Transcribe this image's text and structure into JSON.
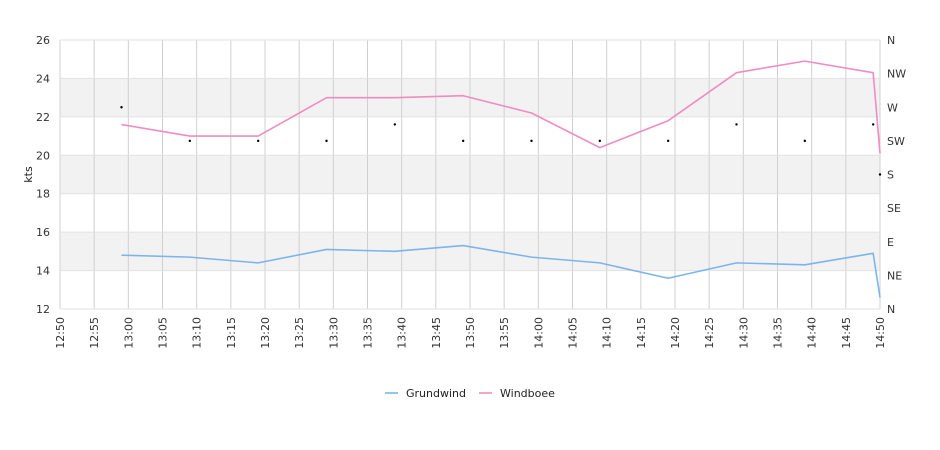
{
  "chart_data": {
    "type": "line",
    "ylabel": "kts",
    "ylim": [
      12,
      26
    ],
    "y_ticks": [
      12,
      14,
      16,
      18,
      20,
      22,
      24,
      26
    ],
    "y_bands": [
      [
        14,
        16
      ],
      [
        18,
        20
      ],
      [
        22,
        24
      ]
    ],
    "x_ticks": [
      "12:50",
      "12:55",
      "13:00",
      "13:05",
      "13:10",
      "13:15",
      "13:20",
      "13:25",
      "13:30",
      "13:35",
      "13:40",
      "13:45",
      "13:50",
      "13:55",
      "14:00",
      "14:05",
      "14:10",
      "14:15",
      "14:20",
      "14:25",
      "14:30",
      "14:35",
      "14:40",
      "14:45",
      "14:50"
    ],
    "xlim": [
      "12:50",
      "14:50"
    ],
    "right_axis": {
      "labels": [
        "N",
        "NW",
        "W",
        "SW",
        "S",
        "SE",
        "E",
        "NE",
        "N"
      ],
      "values": [
        360,
        315,
        270,
        225,
        180,
        135,
        90,
        45,
        0
      ]
    },
    "x": [
      "12:59",
      "13:09",
      "13:19",
      "13:29",
      "13:39",
      "13:49",
      "13:59",
      "14:09",
      "14:19",
      "14:29",
      "14:39",
      "14:49",
      "14:50"
    ],
    "series": [
      {
        "name": "Grundwind",
        "color": "#7cb5ec",
        "values": [
          14.8,
          14.7,
          14.4,
          15.1,
          15.0,
          15.3,
          14.7,
          14.4,
          13.6,
          14.4,
          14.3,
          14.9,
          12.6
        ]
      },
      {
        "name": "Windboee",
        "color": "#f08cc0",
        "values": [
          21.6,
          21.0,
          21.0,
          23.0,
          23.0,
          23.1,
          22.2,
          20.4,
          21.8,
          24.3,
          24.9,
          24.3,
          20.1
        ]
      }
    ],
    "direction": {
      "x": [
        "12:59",
        "13:09",
        "13:19",
        "13:29",
        "13:39",
        "13:49",
        "13:59",
        "14:09",
        "14:19",
        "14:29",
        "14:39",
        "14:49",
        "14:50"
      ],
      "values": [
        270,
        225,
        225,
        225,
        247,
        225,
        225,
        225,
        225,
        247,
        225,
        247,
        180
      ]
    },
    "legend": {
      "position": "bottom",
      "items": [
        "Grundwind",
        "Windboee"
      ]
    },
    "grid": true
  }
}
